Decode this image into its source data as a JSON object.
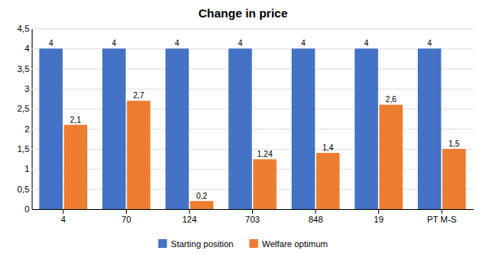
{
  "chart_data": {
    "type": "bar",
    "title": "Change in price",
    "categories": [
      "4",
      "70",
      "124",
      "703",
      "848",
      "19",
      "PT M-S"
    ],
    "series": [
      {
        "name": "Starting position",
        "color": "#4472C4",
        "values": [
          4,
          4,
          4,
          4,
          4,
          4,
          4
        ]
      },
      {
        "name": "Welfare optimum",
        "color": "#ED7D31",
        "values": [
          2.1,
          2.7,
          0.2,
          1.24,
          1.4,
          2.6,
          1.5
        ],
        "value_labels": [
          "2,1",
          "2,7",
          "0,2",
          "1,24",
          "1,4",
          "2,6",
          "1,5"
        ]
      }
    ],
    "ylim": [
      0,
      4.5
    ],
    "yticks": [
      0,
      {
        "value": 0.5,
        "label": "0,5"
      },
      1,
      {
        "value": 1.5,
        "label": "1,5"
      },
      2,
      {
        "value": 2.5,
        "label": "2,5"
      },
      3,
      {
        "value": 3.5,
        "label": "3,5"
      },
      4,
      {
        "value": 4.5,
        "label": "4,5"
      }
    ],
    "grid": true,
    "data_labels": true,
    "legend": "bottom"
  }
}
